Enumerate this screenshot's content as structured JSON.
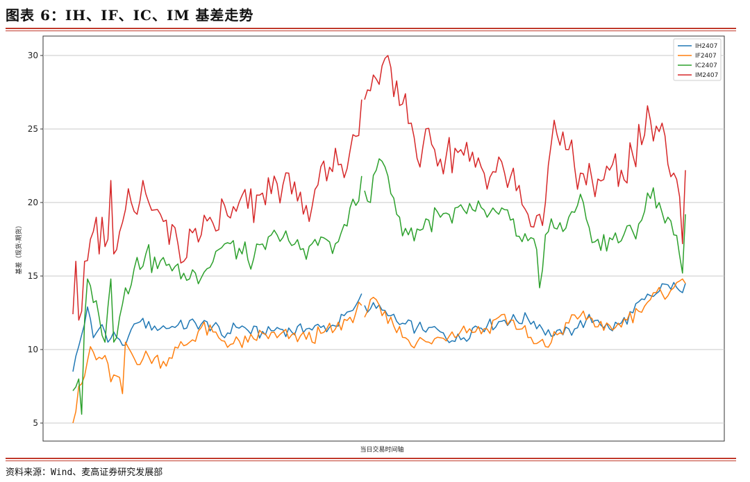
{
  "title": "图表 6：IH、IF、IC、IM 基差走势",
  "source": "资料来源：Wind、麦高证券研究发展部",
  "chart_data": {
    "type": "line",
    "xlabel": "当日交易时间轴",
    "ylabel": "基差（现货-期货）",
    "ylim": [
      4,
      31
    ],
    "yticks": [
      5,
      10,
      15,
      20,
      25,
      30
    ],
    "grid": "y",
    "legend_position": "top-right",
    "x_points": 211,
    "gap_after_index": 99,
    "series": [
      {
        "name": "IH2407",
        "color": "#1f77b4",
        "anchors": [
          [
            0,
            8.5
          ],
          [
            3,
            11
          ],
          [
            5,
            12.9
          ],
          [
            7,
            10.8
          ],
          [
            10,
            11.7
          ],
          [
            12,
            10.5
          ],
          [
            14,
            11.2
          ],
          [
            18,
            10.3
          ],
          [
            22,
            11.8
          ],
          [
            28,
            11.6
          ],
          [
            35,
            11.5
          ],
          [
            42,
            11.8
          ],
          [
            48,
            11.6
          ],
          [
            52,
            10.8
          ],
          [
            55,
            11.8
          ],
          [
            60,
            11.3
          ],
          [
            66,
            11
          ],
          [
            70,
            11.5
          ],
          [
            75,
            11.2
          ],
          [
            80,
            11.4
          ],
          [
            85,
            11.5
          ],
          [
            90,
            11.6
          ],
          [
            95,
            12.6
          ],
          [
            97,
            13
          ],
          [
            99,
            13.8
          ],
          [
            100,
            13
          ],
          [
            104,
            12.8
          ],
          [
            108,
            12.3
          ],
          [
            112,
            11.7
          ],
          [
            118,
            11.5
          ],
          [
            122,
            11.5
          ],
          [
            126,
            11.2
          ],
          [
            130,
            10.6
          ],
          [
            134,
            10.8
          ],
          [
            138,
            11.6
          ],
          [
            142,
            11.6
          ],
          [
            148,
            12
          ],
          [
            152,
            12
          ],
          [
            156,
            12.1
          ],
          [
            160,
            11.7
          ],
          [
            164,
            10.9
          ],
          [
            168,
            11
          ],
          [
            172,
            11.4
          ],
          [
            176,
            12
          ],
          [
            180,
            12
          ],
          [
            184,
            11.4
          ],
          [
            188,
            11.8
          ],
          [
            192,
            12.5
          ],
          [
            196,
            13.4
          ],
          [
            200,
            13.8
          ],
          [
            204,
            14.4
          ],
          [
            208,
            14
          ],
          [
            210,
            14.5
          ]
        ]
      },
      {
        "name": "IF2407",
        "color": "#ff7f0e",
        "anchors": [
          [
            0,
            5
          ],
          [
            2,
            7.5
          ],
          [
            4,
            8.2
          ],
          [
            6,
            10.2
          ],
          [
            8,
            9.3
          ],
          [
            11,
            9.6
          ],
          [
            13,
            7.8
          ],
          [
            15,
            8.2
          ],
          [
            17,
            7
          ],
          [
            18,
            10.5
          ],
          [
            21,
            9.4
          ],
          [
            26,
            9.5
          ],
          [
            31,
            9.2
          ],
          [
            36,
            10.1
          ],
          [
            40,
            10.5
          ],
          [
            44,
            11.5
          ],
          [
            50,
            10.8
          ],
          [
            55,
            10.4
          ],
          [
            60,
            10.5
          ],
          [
            65,
            11.1
          ],
          [
            70,
            10.8
          ],
          [
            75,
            11
          ],
          [
            80,
            10.7
          ],
          [
            85,
            11.1
          ],
          [
            90,
            11.4
          ],
          [
            95,
            12.2
          ],
          [
            97,
            12.5
          ],
          [
            99,
            13
          ],
          [
            100,
            12.2
          ],
          [
            102,
            13.4
          ],
          [
            106,
            12.3
          ],
          [
            110,
            11.6
          ],
          [
            114,
            10.8
          ],
          [
            118,
            10.5
          ],
          [
            122,
            10.5
          ],
          [
            126,
            10.8
          ],
          [
            130,
            11.2
          ],
          [
            134,
            11.6
          ],
          [
            138,
            11.2
          ],
          [
            142,
            11.4
          ],
          [
            146,
            12.2
          ],
          [
            150,
            12
          ],
          [
            154,
            11.4
          ],
          [
            158,
            10.4
          ],
          [
            162,
            10.2
          ],
          [
            166,
            11
          ],
          [
            170,
            11.8
          ],
          [
            174,
            12.3
          ],
          [
            178,
            12.1
          ],
          [
            182,
            11.3
          ],
          [
            186,
            11.5
          ],
          [
            190,
            12
          ],
          [
            194,
            12.6
          ],
          [
            198,
            13.4
          ],
          [
            202,
            13.8
          ],
          [
            206,
            14.2
          ],
          [
            209,
            14.8
          ],
          [
            210,
            14.5
          ]
        ]
      },
      {
        "name": "IC2407",
        "color": "#2ca02c",
        "anchors": [
          [
            0,
            7.2
          ],
          [
            2,
            8
          ],
          [
            3,
            5.6
          ],
          [
            4,
            12
          ],
          [
            5,
            14.8
          ],
          [
            7,
            13.2
          ],
          [
            9,
            12.2
          ],
          [
            11,
            10.5
          ],
          [
            13,
            14.8
          ],
          [
            14,
            10.5
          ],
          [
            16,
            12.2
          ],
          [
            18,
            14.2
          ],
          [
            21,
            15.5
          ],
          [
            25,
            16.5
          ],
          [
            29,
            15.5
          ],
          [
            33,
            15.8
          ],
          [
            37,
            14.8
          ],
          [
            42,
            15.2
          ],
          [
            46,
            15.5
          ],
          [
            50,
            16.8
          ],
          [
            54,
            17.2
          ],
          [
            58,
            16.5
          ],
          [
            62,
            16.2
          ],
          [
            66,
            16.8
          ],
          [
            70,
            17.8
          ],
          [
            74,
            17.4
          ],
          [
            78,
            16.8
          ],
          [
            82,
            17.2
          ],
          [
            86,
            17.6
          ],
          [
            90,
            17.2
          ],
          [
            94,
            18.4
          ],
          [
            97,
            19.8
          ],
          [
            99,
            21.8
          ],
          [
            100,
            20.8
          ],
          [
            102,
            20
          ],
          [
            104,
            22.2
          ],
          [
            106,
            22.8
          ],
          [
            108,
            21.8
          ],
          [
            110,
            20.3
          ],
          [
            112,
            19
          ],
          [
            115,
            17.8
          ],
          [
            118,
            18.2
          ],
          [
            122,
            18.8
          ],
          [
            126,
            19
          ],
          [
            130,
            18.6
          ],
          [
            134,
            19.5
          ],
          [
            138,
            19.4
          ],
          [
            142,
            19
          ],
          [
            146,
            19.2
          ],
          [
            150,
            18.8
          ],
          [
            153,
            17.7
          ],
          [
            156,
            17.4
          ],
          [
            159,
            16.8
          ],
          [
            160,
            14.2
          ],
          [
            162,
            17.8
          ],
          [
            166,
            18.2
          ],
          [
            170,
            19
          ],
          [
            173,
            19.8
          ],
          [
            175,
            20
          ],
          [
            177,
            18.3
          ],
          [
            180,
            17.5
          ],
          [
            184,
            17.6
          ],
          [
            188,
            17.4
          ],
          [
            192,
            18
          ],
          [
            196,
            19.4
          ],
          [
            199,
            21
          ],
          [
            201,
            20
          ],
          [
            203,
            18.6
          ],
          [
            206,
            17.8
          ],
          [
            208,
            16.4
          ],
          [
            209,
            15.2
          ],
          [
            210,
            19.2
          ]
        ]
      },
      {
        "name": "IM2407",
        "color": "#d62728",
        "anchors": [
          [
            0,
            12.4
          ],
          [
            1,
            16
          ],
          [
            2,
            12
          ],
          [
            4,
            16
          ],
          [
            6,
            17.5
          ],
          [
            8,
            19
          ],
          [
            9,
            16.5
          ],
          [
            10,
            19
          ],
          [
            11,
            17
          ],
          [
            12,
            17.5
          ],
          [
            13,
            21.5
          ],
          [
            14,
            16.5
          ],
          [
            16,
            18
          ],
          [
            18,
            19.5
          ],
          [
            20,
            20
          ],
          [
            22,
            19.2
          ],
          [
            24,
            21.5
          ],
          [
            26,
            20
          ],
          [
            28,
            19.5
          ],
          [
            30,
            19.2
          ],
          [
            32,
            18.8
          ],
          [
            34,
            18.5
          ],
          [
            36,
            17.2
          ],
          [
            38,
            16
          ],
          [
            40,
            18.2
          ],
          [
            44,
            17.8
          ],
          [
            48,
            18.6
          ],
          [
            52,
            19.8
          ],
          [
            56,
            19.4
          ],
          [
            60,
            19.6
          ],
          [
            64,
            20.5
          ],
          [
            68,
            20.6
          ],
          [
            72,
            21.2
          ],
          [
            76,
            21.4
          ],
          [
            80,
            19.8
          ],
          [
            84,
            21.2
          ],
          [
            88,
            22.4
          ],
          [
            92,
            22.6
          ],
          [
            95,
            23.5
          ],
          [
            97,
            24.5
          ],
          [
            99,
            27
          ],
          [
            100,
            27
          ],
          [
            102,
            27.6
          ],
          [
            104,
            28.4
          ],
          [
            106,
            29.3
          ],
          [
            108,
            30
          ],
          [
            109,
            29.2
          ],
          [
            110,
            27.2
          ],
          [
            112,
            26.6
          ],
          [
            114,
            27.4
          ],
          [
            116,
            25.4
          ],
          [
            118,
            23
          ],
          [
            120,
            23.8
          ],
          [
            124,
            23.6
          ],
          [
            128,
            23.2
          ],
          [
            132,
            23.4
          ],
          [
            136,
            22.8
          ],
          [
            140,
            22.4
          ],
          [
            144,
            22.1
          ],
          [
            148,
            22
          ],
          [
            152,
            20.8
          ],
          [
            156,
            19.2
          ],
          [
            160,
            19.2
          ],
          [
            162,
            20
          ],
          [
            164,
            24
          ],
          [
            166,
            24.6
          ],
          [
            168,
            24.8
          ],
          [
            170,
            23.6
          ],
          [
            172,
            22.4
          ],
          [
            174,
            22
          ],
          [
            176,
            21.2
          ],
          [
            180,
            21.6
          ],
          [
            184,
            22.2
          ],
          [
            188,
            22.2
          ],
          [
            192,
            23.2
          ],
          [
            196,
            24.6
          ],
          [
            198,
            25.6
          ],
          [
            200,
            25.2
          ],
          [
            202,
            25.4
          ],
          [
            204,
            22.6
          ],
          [
            206,
            22
          ],
          [
            208,
            20.4
          ],
          [
            209,
            17.2
          ],
          [
            210,
            22.2
          ]
        ]
      }
    ]
  }
}
